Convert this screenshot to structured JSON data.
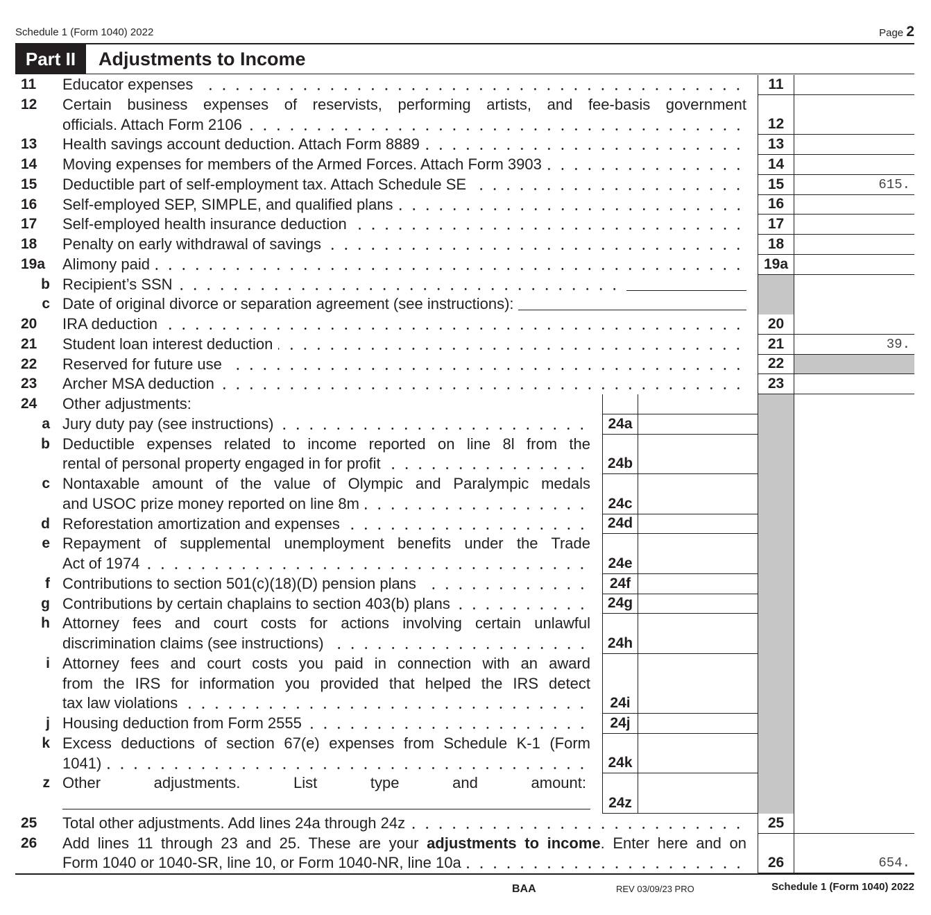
{
  "header": {
    "form_name": "Schedule 1 (Form 1040) 2022",
    "page_label": "Page",
    "page_number": "2"
  },
  "part": {
    "tag": "Part II",
    "title": "Adjustments to Income"
  },
  "rows": [
    {
      "num": "11",
      "lines": [
        "Educator expenses"
      ],
      "leader": true,
      "box": "11",
      "amount": ""
    },
    {
      "num": "12",
      "lines": [
        "Certain business expenses of reservists, performing artists, and fee-basis government",
        "officials. Attach Form 2106"
      ],
      "leader": true,
      "box": "12",
      "amount": ""
    },
    {
      "num": "13",
      "lines": [
        "Health savings account deduction. Attach Form 8889"
      ],
      "leader": true,
      "box": "13",
      "amount": ""
    },
    {
      "num": "14",
      "lines": [
        "Moving expenses for members of the Armed Forces. Attach Form 3903"
      ],
      "leader": true,
      "box": "14",
      "amount": ""
    },
    {
      "num": "15",
      "lines": [
        "Deductible part of self-employment tax. Attach Schedule SE"
      ],
      "leader": true,
      "box": "15",
      "amount": "615."
    },
    {
      "num": "16",
      "lines": [
        "Self-employed SEP, SIMPLE, and qualified plans"
      ],
      "leader": true,
      "box": "16",
      "amount": ""
    },
    {
      "num": "17",
      "lines": [
        "Self-employed health insurance deduction"
      ],
      "leader": true,
      "box": "17",
      "amount": ""
    },
    {
      "num": "18",
      "lines": [
        "Penalty on early withdrawal of savings"
      ],
      "leader": true,
      "box": "18",
      "amount": ""
    },
    {
      "num": "19a",
      "lines": [
        "Alimony paid"
      ],
      "leader": true,
      "box": "19a",
      "amount": ""
    },
    {
      "letter": "b",
      "lines": [
        "Recipient’s SSN"
      ],
      "leader": true,
      "field": "recipient-ssn",
      "kind": "greymain",
      "field_value": ""
    },
    {
      "letter": "c",
      "lines": [
        "Date of original divorce or separation agreement (see instructions):"
      ],
      "leader": false,
      "field": "divorce-date",
      "kind": "greymain",
      "field_value": ""
    },
    {
      "num": "20",
      "lines": [
        "IRA deduction"
      ],
      "leader": true,
      "box": "20",
      "amount": ""
    },
    {
      "num": "21",
      "lines": [
        "Student loan interest deduction"
      ],
      "leader": true,
      "box": "21",
      "amount": "39."
    },
    {
      "num": "22",
      "lines": [
        "Reserved for future use"
      ],
      "leader": true,
      "box": "22",
      "amount": "",
      "amount_grey": true
    },
    {
      "num": "23",
      "lines": [
        "Archer MSA deduction"
      ],
      "leader": true,
      "box": "23",
      "amount": ""
    },
    {
      "num": "24",
      "lines": [
        "Other adjustments:"
      ],
      "leader": false,
      "kind": "subhead"
    },
    {
      "letter": "a",
      "lines": [
        "Jury duty pay (see instructions)"
      ],
      "leader": true,
      "kind": "sub",
      "box": "24a"
    },
    {
      "letter": "b",
      "lines": [
        "Deductible expenses related to income reported on line 8l from the",
        "rental of personal property engaged in for profit"
      ],
      "leader": true,
      "kind": "sub",
      "box": "24b"
    },
    {
      "letter": "c",
      "lines": [
        "Nontaxable amount of the value of Olympic and Paralympic medals",
        "and USOC prize money reported on line 8m"
      ],
      "leader": true,
      "kind": "sub",
      "box": "24c"
    },
    {
      "letter": "d",
      "lines": [
        "Reforestation amortization and expenses"
      ],
      "leader": true,
      "kind": "sub",
      "box": "24d"
    },
    {
      "letter": "e",
      "lines": [
        "Repayment of supplemental unemployment benefits under the Trade",
        "Act of 1974"
      ],
      "leader": true,
      "kind": "sub",
      "box": "24e"
    },
    {
      "letter": "f",
      "lines": [
        "Contributions to section 501(c)(18)(D) pension plans"
      ],
      "leader": true,
      "kind": "sub",
      "box": "24f"
    },
    {
      "letter": "g",
      "lines": [
        "Contributions by certain chaplains to section 403(b) plans"
      ],
      "leader": true,
      "kind": "sub",
      "box": "24g"
    },
    {
      "letter": "h",
      "lines": [
        "Attorney fees and court costs for actions involving certain unlawful",
        "discrimination claims (see instructions)"
      ],
      "leader": true,
      "kind": "sub",
      "box": "24h"
    },
    {
      "letter": "i",
      "lines": [
        "Attorney fees and court costs you paid in connection with an award",
        "from the IRS for information you provided that helped the IRS detect",
        "tax law violations"
      ],
      "leader": true,
      "kind": "sub",
      "box": "24i"
    },
    {
      "letter": "j",
      "lines": [
        "Housing deduction from Form 2555"
      ],
      "leader": true,
      "kind": "sub",
      "box": "24j"
    },
    {
      "letter": "k",
      "lines": [
        "Excess deductions of section 67(e) expenses from Schedule K-1 (Form",
        "1041)"
      ],
      "leader": true,
      "kind": "sub",
      "box": "24k"
    },
    {
      "letter": "z",
      "lines": [
        "Other adjustments. List type and amount:",
        ""
      ],
      "leader": false,
      "kind": "sub",
      "box": "24z",
      "field": "other-adjustments",
      "field_value": ""
    },
    {
      "num": "25",
      "lines": [
        "Total other adjustments. Add lines 24a through 24z"
      ],
      "leader": true,
      "box": "25",
      "amount": ""
    },
    {
      "num": "26",
      "lines": [
        {
          "pre": "Add lines 11 through 23 and 25. These are your ",
          "bold": "adjustments to income",
          "post": ". Enter here and on"
        },
        "Form 1040 or 1040-SR, line 10, or Form 1040-NR, line 10a"
      ],
      "leader": true,
      "box": "26",
      "amount": "654."
    }
  ],
  "footer": {
    "baa": "BAA",
    "revision": "REV 03/09/23 PRO",
    "form_name": "Schedule 1 (Form 1040) 2022"
  }
}
